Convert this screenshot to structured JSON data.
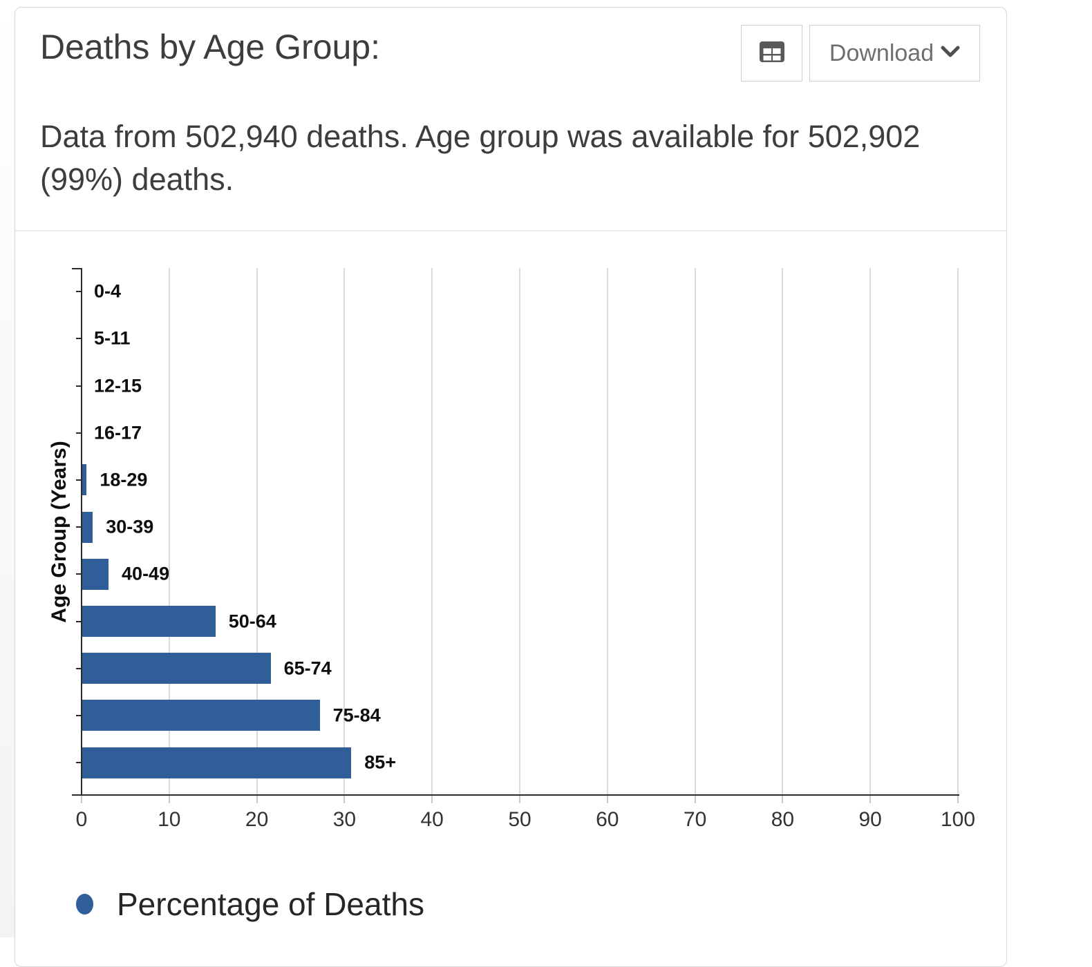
{
  "card": {
    "title": "Deaths by Age Group:",
    "subtitle": "Data from 502,940 deaths. Age group was available for 502,902 (99%) deaths.",
    "toolbar": {
      "table_button_icon": "table-icon",
      "download_label": "Download",
      "download_chevron_icon": "chevron-down-icon"
    }
  },
  "chart_data": {
    "type": "bar",
    "orientation": "horizontal",
    "title": "",
    "categories": [
      "0-4",
      "5-11",
      "12-15",
      "16-17",
      "18-29",
      "30-39",
      "40-49",
      "50-64",
      "65-74",
      "75-84",
      "85+"
    ],
    "values": [
      0,
      0,
      0,
      0,
      0.5,
      1.2,
      3.0,
      15.2,
      21.5,
      27.1,
      30.7
    ],
    "xlabel": "",
    "ylabel": "Age Group (Years)",
    "xlim": [
      0,
      100
    ],
    "x_ticks": [
      0,
      10,
      20,
      30,
      40,
      50,
      60,
      70,
      80,
      90,
      100
    ],
    "grid": true,
    "bar_color": "#2f5e99",
    "axis_color": "#2b2b2b",
    "gridline_color": "#dadada",
    "legend": {
      "label": "Percentage of Deaths",
      "marker_color": "#2f5e99",
      "position": "bottom"
    }
  }
}
